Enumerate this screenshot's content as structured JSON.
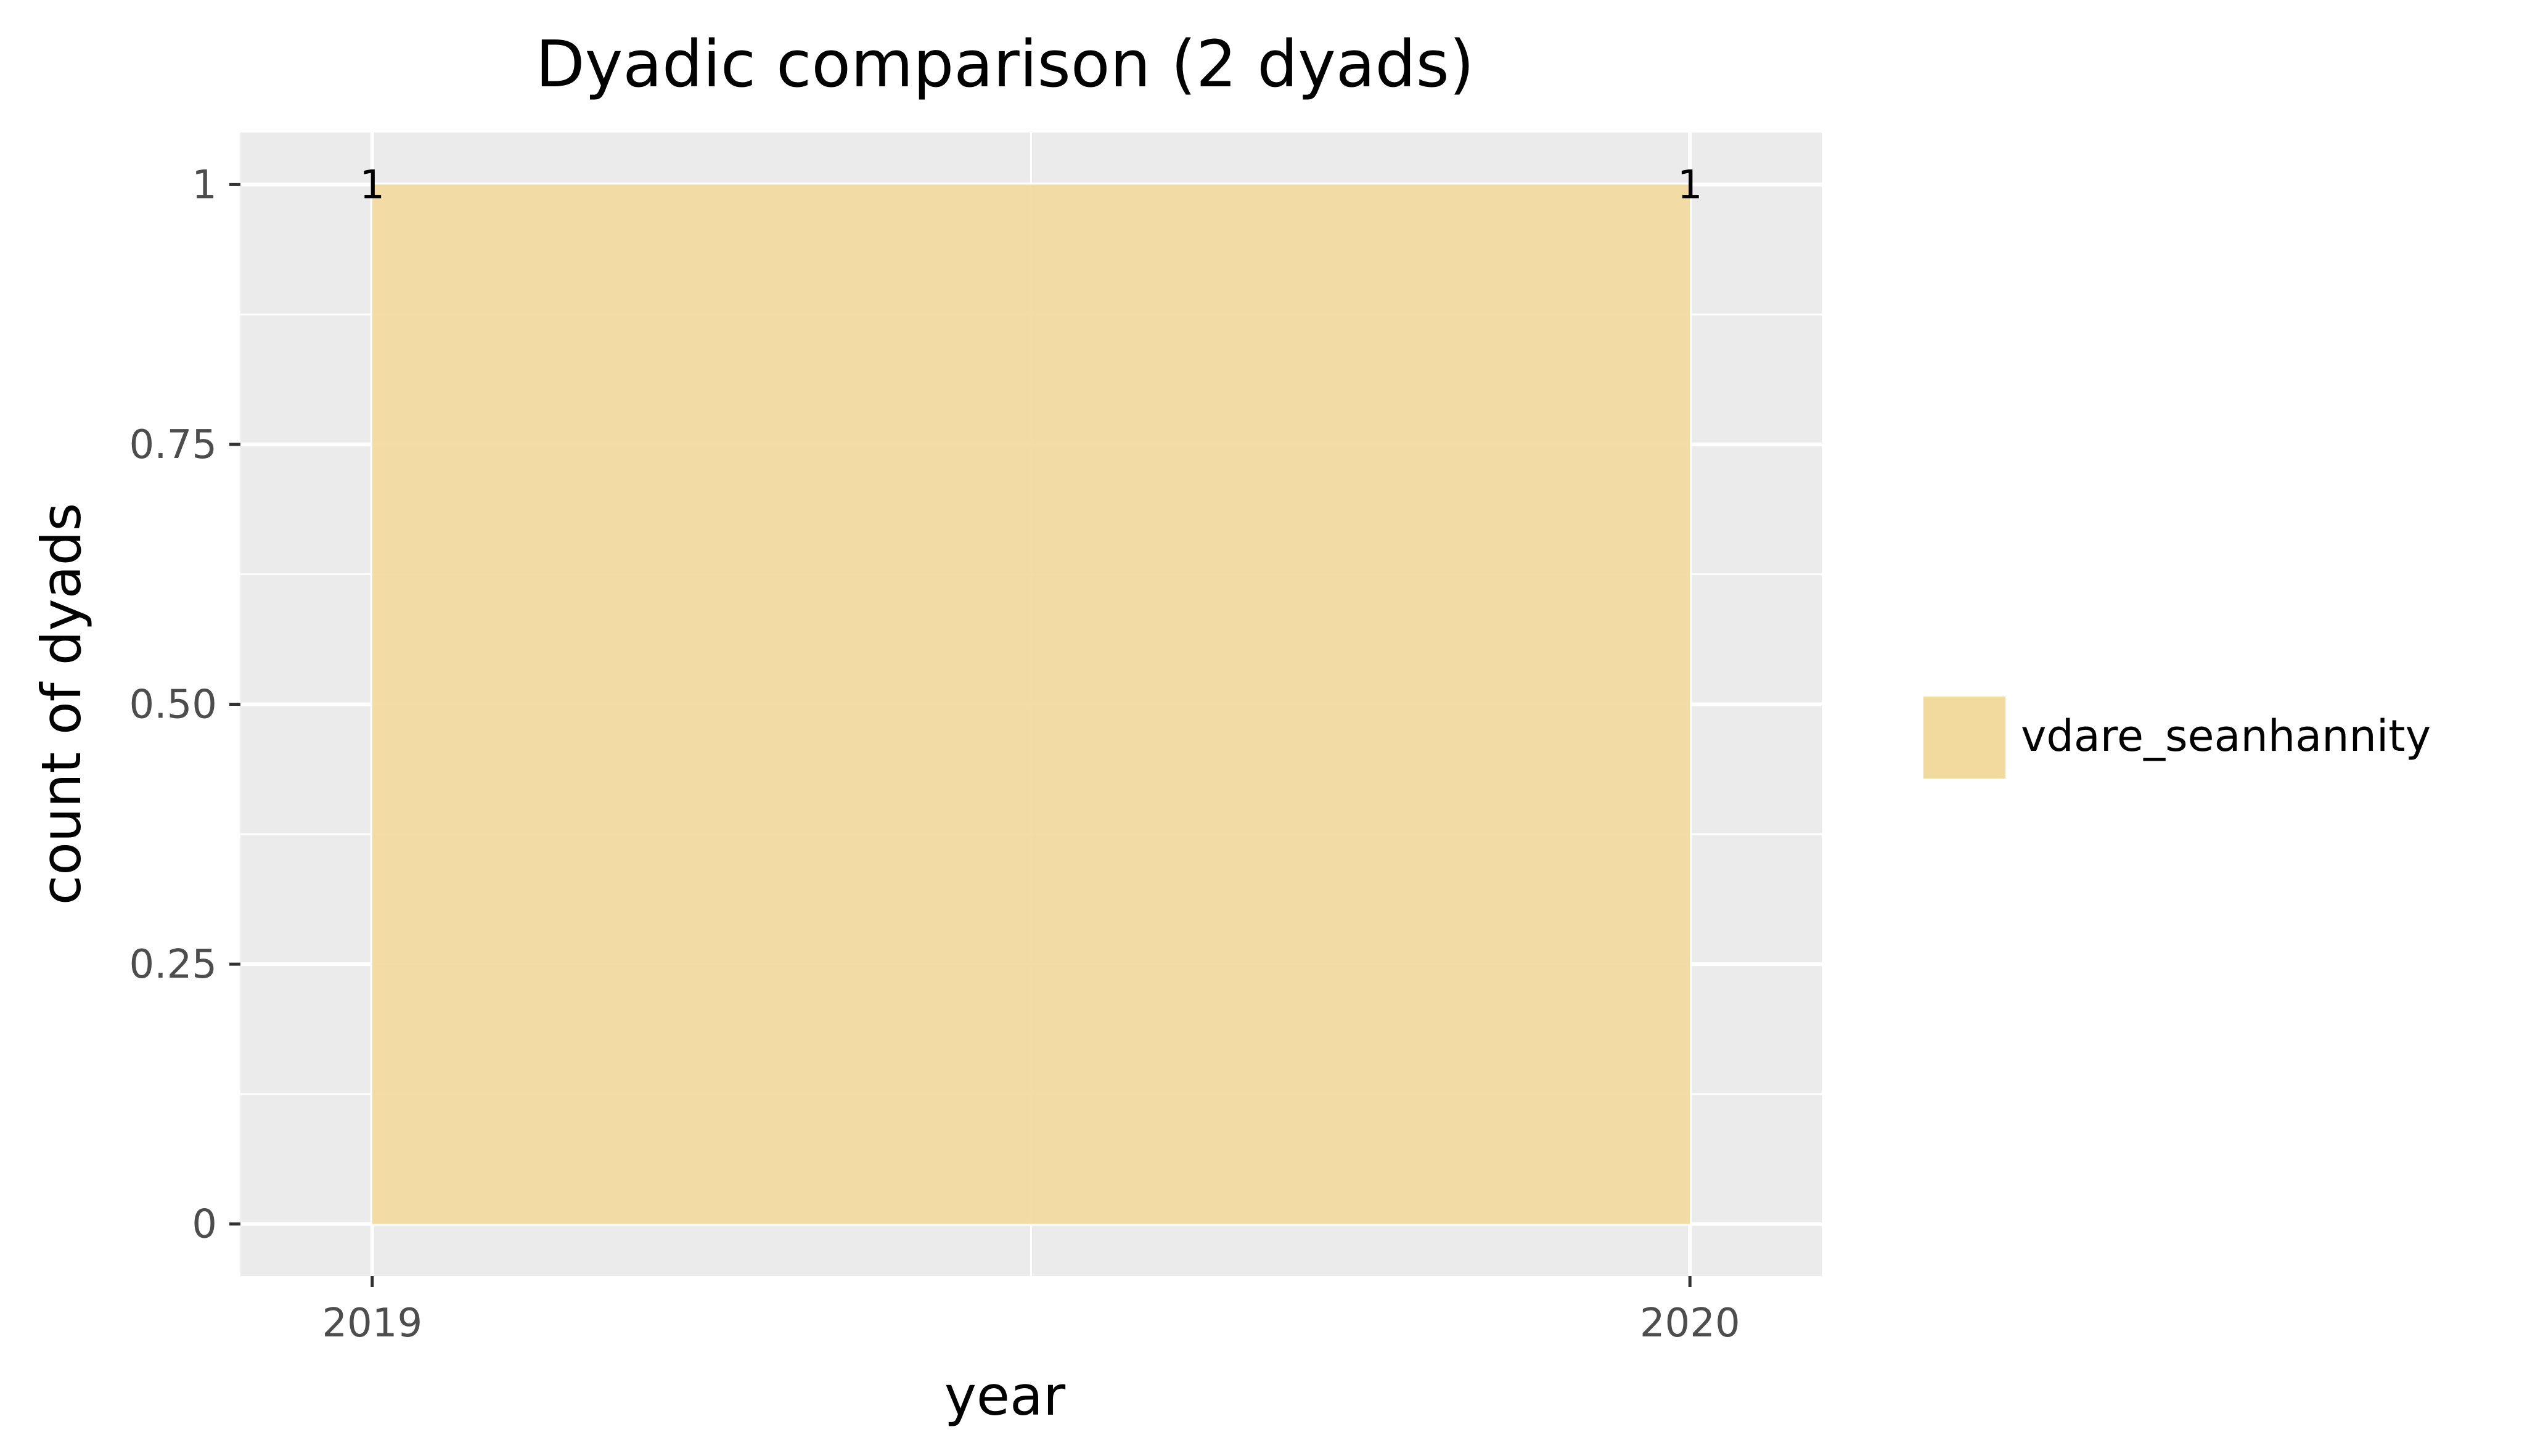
{
  "chart_data": {
    "type": "area",
    "title": "Dyadic comparison (2 dyads)",
    "xlabel": "year",
    "ylabel": "count of dyads",
    "x": [
      2019,
      2020
    ],
    "x_ticks": [
      "2019",
      "2020"
    ],
    "y_ticks": [
      "0",
      "0.25",
      "0.50",
      "0.75",
      "1"
    ],
    "y_tick_values": [
      0,
      0.25,
      0.5,
      0.75,
      1
    ],
    "xlim": [
      2018.9,
      2020.1
    ],
    "ylim": [
      -0.05,
      1.05
    ],
    "series": [
      {
        "name": "vdare_seanhannity",
        "values": [
          1,
          1
        ],
        "data_labels": [
          "1",
          "1"
        ],
        "color": "#f2d99e"
      }
    ],
    "grid": true,
    "legend_position": "right",
    "panel_background": "#ebebeb",
    "grid_color": "#ffffff"
  }
}
